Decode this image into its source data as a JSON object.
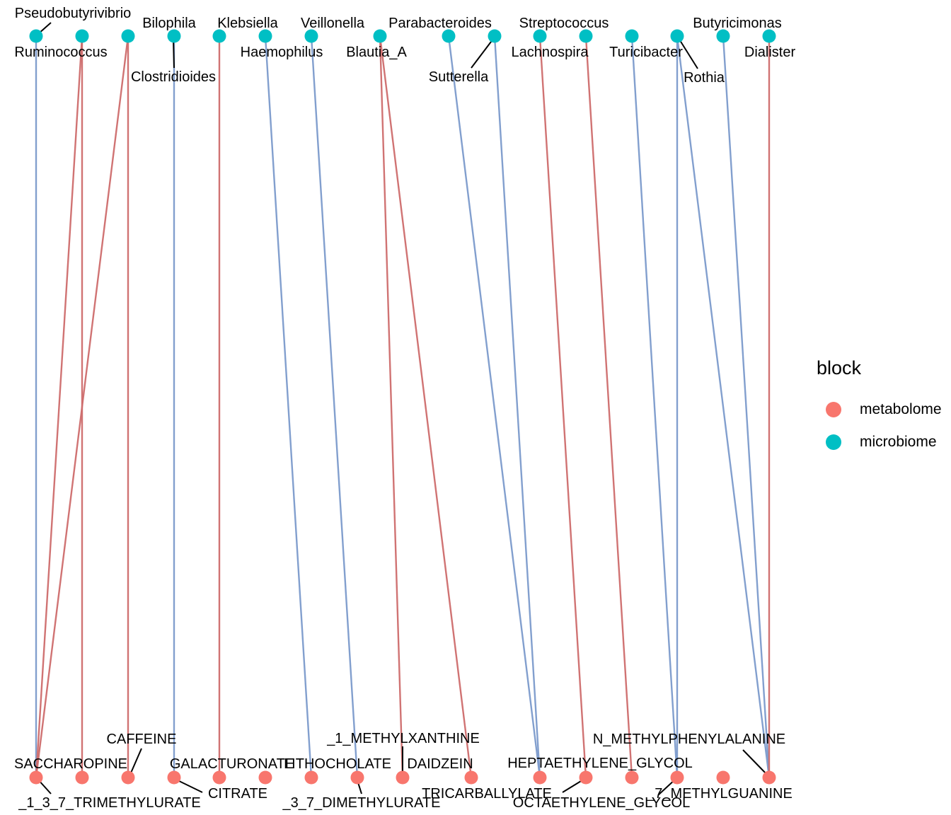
{
  "colors": {
    "metabolome": "#F8766D",
    "microbiome": "#00BFC4",
    "edge_pos": "#CD6B6B",
    "edge_neg": "#7B9ACB",
    "leader": "#000000"
  },
  "legend": {
    "title": "block",
    "items": [
      {
        "label": "metabolome",
        "color": "#F8766D"
      },
      {
        "label": "microbiome",
        "color": "#00BFC4"
      }
    ]
  },
  "microbiome": [
    "Ruminococcus",
    "Pseudobutyrivibrio",
    "Bilophila",
    "Clostridioides",
    "Klebsiella",
    "Haemophilus",
    "Veillonella",
    "Blautia_A",
    "Sutterella",
    "Parabacteroides",
    "Lachnospira",
    "Streptococcus",
    "Turicibacter",
    "Rothia",
    "Butyricimonas",
    "Dialister"
  ],
  "metabolome": [
    "_1_3_7_TRIMETHYLURATE",
    "SACCHAROPINE",
    "CAFFEINE",
    "CITRATE",
    "GALACTURONATE",
    "LITHOCHOLATE",
    "_3_7_DIMETHYLURATE",
    "_1_METHYLXANTHINE",
    "DAIDZEIN",
    "TRICARBALLYLATE",
    "HEPTAETHYLENE_GLYCOL",
    "OCTAETHYLENE_GLYCOL",
    "N_METHYLPHENYLALANINE",
    "_7_METHYLGUANINE"
  ],
  "edges": [
    {
      "microbe": "Ruminococcus",
      "metabolite": "_1_3_7_TRIMETHYLURATE",
      "sign": "negative"
    },
    {
      "microbe": "Pseudobutyrivibrio",
      "metabolite": "_1_3_7_TRIMETHYLURATE",
      "sign": "positive"
    },
    {
      "microbe": "Pseudobutyrivibrio",
      "metabolite": "SACCHAROPINE",
      "sign": "positive"
    },
    {
      "microbe": "Bilophila",
      "metabolite": "_1_3_7_TRIMETHYLURATE",
      "sign": "positive"
    },
    {
      "microbe": "Bilophila",
      "metabolite": "CAFFEINE",
      "sign": "positive"
    },
    {
      "microbe": "Clostridioides",
      "metabolite": "CITRATE",
      "sign": "negative"
    },
    {
      "microbe": "Klebsiella",
      "metabolite": "GALACTURONATE",
      "sign": "positive"
    },
    {
      "microbe": "Haemophilus",
      "metabolite": "LITHOCHOLATE",
      "sign": "negative"
    },
    {
      "microbe": "Veillonella",
      "metabolite": "_3_7_DIMETHYLURATE",
      "sign": "negative"
    },
    {
      "microbe": "Blautia_A",
      "metabolite": "_1_METHYLXANTHINE",
      "sign": "positive"
    },
    {
      "microbe": "Blautia_A",
      "metabolite": "DAIDZEIN",
      "sign": "positive"
    },
    {
      "microbe": "Sutterella",
      "metabolite": "TRICARBALLYLATE",
      "sign": "negative"
    },
    {
      "microbe": "Parabacteroides",
      "metabolite": "TRICARBALLYLATE",
      "sign": "negative"
    },
    {
      "microbe": "Lachnospira",
      "metabolite": "HEPTAETHYLENE_GLYCOL",
      "sign": "positive"
    },
    {
      "microbe": "Streptococcus",
      "metabolite": "OCTAETHYLENE_GLYCOL",
      "sign": "positive"
    },
    {
      "microbe": "Turicibacter",
      "metabolite": "N_METHYLPHENYLALANINE",
      "sign": "negative"
    },
    {
      "microbe": "Rothia",
      "metabolite": "N_METHYLPHENYLALANINE",
      "sign": "negative"
    },
    {
      "microbe": "Rothia",
      "metabolite": "_7_METHYLGUANINE",
      "sign": "negative"
    },
    {
      "microbe": "Butyricimonas",
      "metabolite": "_7_METHYLGUANINE",
      "sign": "negative"
    },
    {
      "microbe": "Dialister",
      "metabolite": "_7_METHYLGUANINE",
      "sign": "positive"
    }
  ]
}
